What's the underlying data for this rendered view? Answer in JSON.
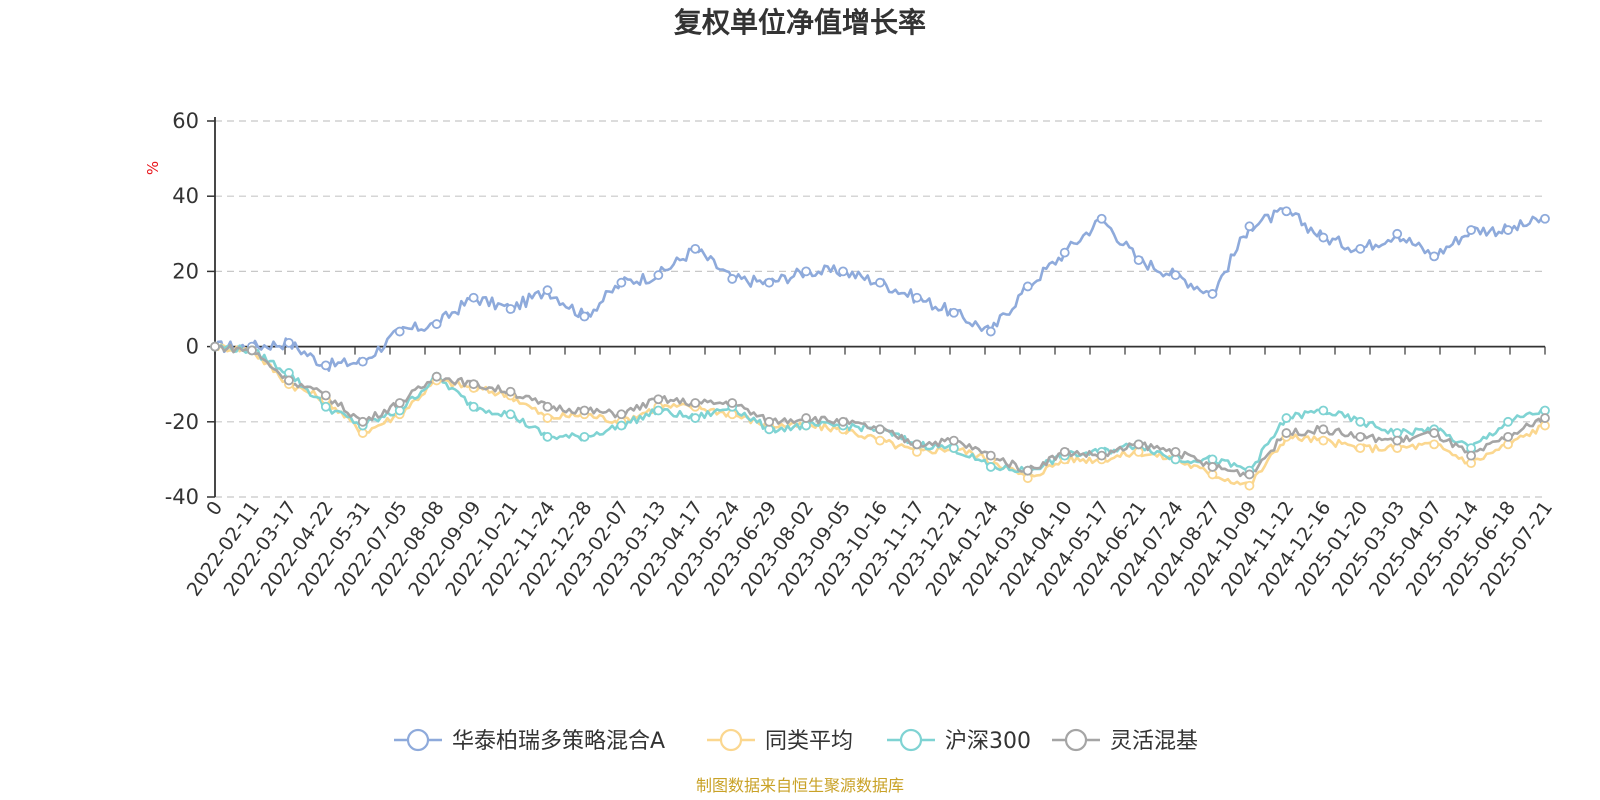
{
  "chart_data": {
    "type": "line",
    "title": "复权单位净值增长率",
    "ylabel": "%",
    "ylim": [
      -40,
      60
    ],
    "yticks": [
      60,
      40,
      20,
      0,
      -20,
      -40
    ],
    "x_first_label": "0",
    "categories": [
      "2022-02-11",
      "2022-03-17",
      "2022-04-22",
      "2022-05-31",
      "2022-07-05",
      "2022-08-08",
      "2022-09-09",
      "2022-10-21",
      "2022-11-24",
      "2022-12-28",
      "2023-02-07",
      "2023-03-13",
      "2023-04-17",
      "2023-05-24",
      "2023-06-29",
      "2023-08-02",
      "2023-09-05",
      "2023-10-16",
      "2023-11-17",
      "2023-12-21",
      "2024-01-24",
      "2024-03-06",
      "2024-04-10",
      "2024-05-17",
      "2024-06-21",
      "2024-07-24",
      "2024-08-27",
      "2024-10-09",
      "2024-11-12",
      "2024-12-16",
      "2025-01-20",
      "2025-03-03",
      "2025-04-07",
      "2025-05-14",
      "2025-06-18",
      "2025-07-21"
    ],
    "grid": true,
    "legend_position": "bottom",
    "series": [
      {
        "name": "华泰柏瑞多策略混合A",
        "color": "#8eaadb",
        "values": [
          0,
          1,
          -5,
          -4,
          4,
          6,
          13,
          10,
          15,
          8,
          17,
          19,
          26,
          18,
          17,
          20,
          20,
          17,
          13,
          9,
          4,
          16,
          25,
          34,
          23,
          19,
          14,
          32,
          36,
          29,
          26,
          30,
          24,
          31,
          31,
          34
        ]
      },
      {
        "name": "同类平均",
        "color": "#fbd78f",
        "values": [
          -1,
          -10,
          -14,
          -23,
          -18,
          -9,
          -11,
          -13,
          -19,
          -18,
          -20,
          -16,
          -16,
          -18,
          -21,
          -21,
          -22,
          -25,
          -28,
          -27,
          -30,
          -35,
          -30,
          -30,
          -28,
          -30,
          -34,
          -37,
          -24,
          -25,
          -27,
          -27,
          -26,
          -31,
          -26,
          -21
        ]
      },
      {
        "name": "沪深300",
        "color": "#7fd3d3",
        "values": [
          -1,
          -7,
          -16,
          -21,
          -17,
          -8,
          -16,
          -18,
          -24,
          -24,
          -21,
          -17,
          -19,
          -16,
          -22,
          -21,
          -21,
          -22,
          -26,
          -27,
          -32,
          -33,
          -29,
          -28,
          -26,
          -30,
          -30,
          -33,
          -19,
          -17,
          -20,
          -23,
          -22,
          -27,
          -20,
          -17
        ]
      },
      {
        "name": "灵活混基",
        "color": "#a5a5a5",
        "values": [
          -1,
          -9,
          -13,
          -20,
          -15,
          -8,
          -10,
          -12,
          -16,
          -17,
          -18,
          -14,
          -15,
          -15,
          -20,
          -19,
          -20,
          -22,
          -26,
          -25,
          -29,
          -33,
          -28,
          -29,
          -26,
          -28,
          -32,
          -34,
          -23,
          -22,
          -24,
          -25,
          -23,
          -29,
          -24,
          -19
        ]
      }
    ]
  },
  "source_text": "制图数据来自恒生聚源数据库"
}
